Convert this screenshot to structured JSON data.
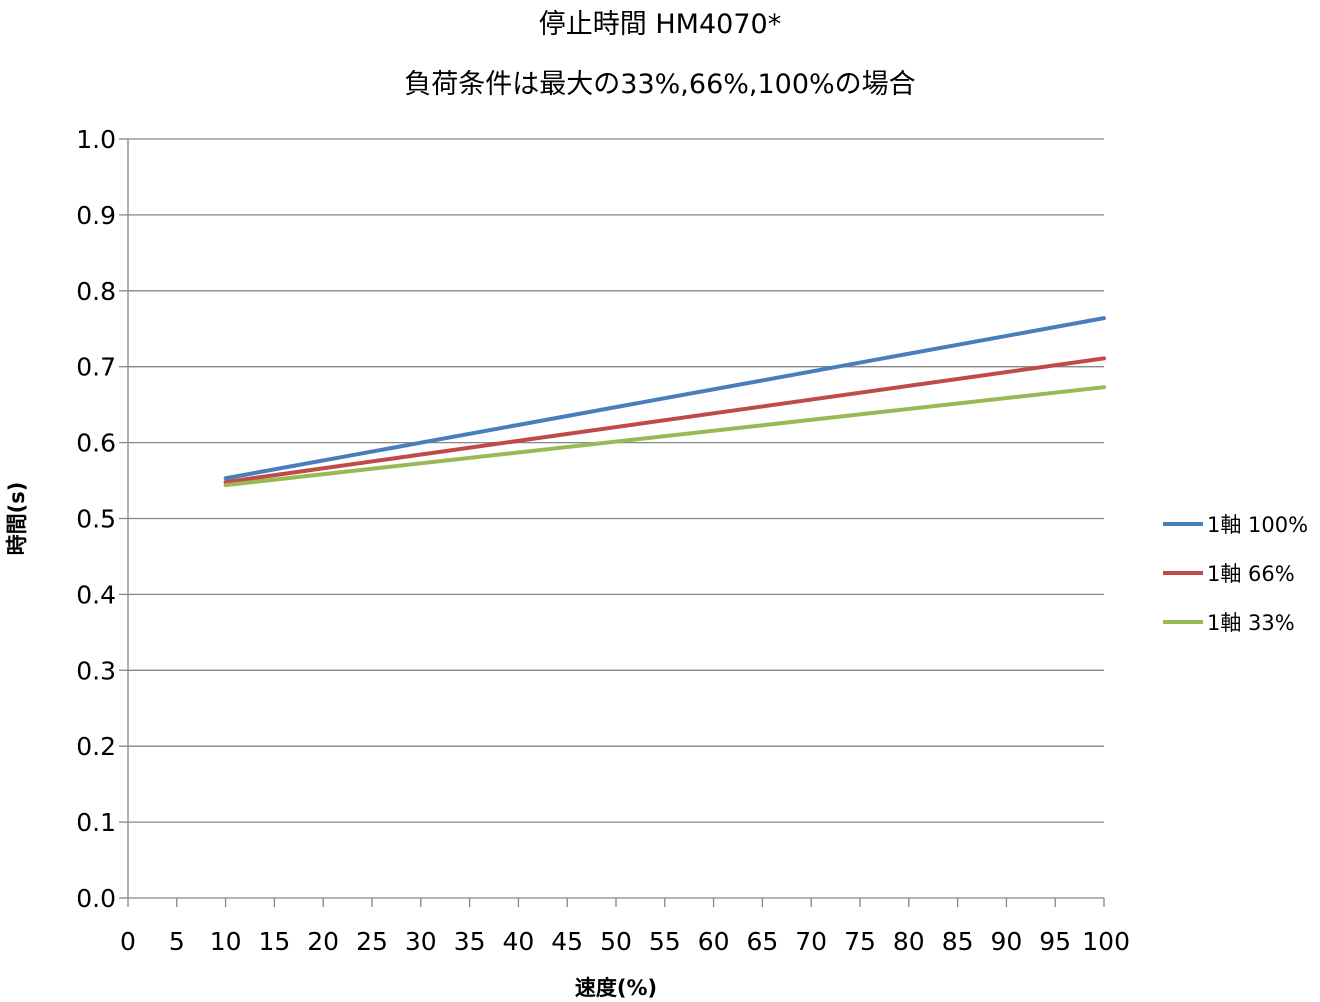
{
  "chart_data": {
    "type": "line",
    "title": "停止時間 HM4070*",
    "subtitle": "負荷条件は最大の33%,66%,100%の場合",
    "xlabel": "速度(%)",
    "ylabel": "時間(s)",
    "xlim": [
      0,
      100
    ],
    "ylim": [
      0.0,
      1.0
    ],
    "x_ticks": [
      "0",
      "5",
      "10",
      "15",
      "20",
      "25",
      "30",
      "35",
      "40",
      "45",
      "50",
      "55",
      "60",
      "65",
      "70",
      "75",
      "80",
      "85",
      "90",
      "95",
      "100"
    ],
    "y_ticks": [
      "0.0",
      "0.1",
      "0.2",
      "0.3",
      "0.4",
      "0.5",
      "0.6",
      "0.7",
      "0.8",
      "0.9",
      "1.0"
    ],
    "grid": "horizontal",
    "legend_position": "right",
    "series": [
      {
        "name": "1軸 100%",
        "color": "#4a7ebb",
        "x": [
          10,
          100
        ],
        "y": [
          0.553,
          0.764
        ]
      },
      {
        "name": "1軸 66%",
        "color": "#be4b48",
        "x": [
          10,
          100
        ],
        "y": [
          0.548,
          0.711
        ]
      },
      {
        "name": "1軸 33%",
        "color": "#98b954",
        "x": [
          10,
          100
        ],
        "y": [
          0.544,
          0.673
        ]
      }
    ]
  }
}
